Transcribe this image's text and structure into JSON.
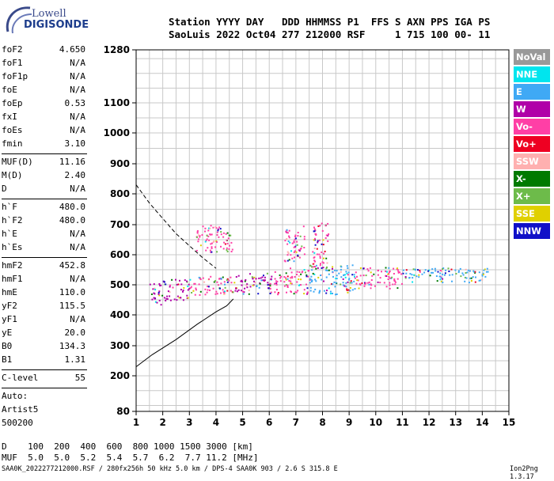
{
  "logo": {
    "line1": "Lowell",
    "line2": "DIGISONDE"
  },
  "header": {
    "line1": "Station YYYY DAY   DDD HHMMSS P1  FFS S AXN PPS IGA PS",
    "line2": "SaoLuis 2022 Oct04 277 212000 RSF     1 715 100 00- 11"
  },
  "params": {
    "group1": [
      {
        "k": "foF2",
        "v": "4.650"
      },
      {
        "k": "foF1",
        "v": "N/A"
      },
      {
        "k": "foF1p",
        "v": "N/A"
      },
      {
        "k": "foE",
        "v": "N/A"
      },
      {
        "k": "foEp",
        "v": "0.53"
      },
      {
        "k": "fxI",
        "v": "N/A"
      },
      {
        "k": "foEs",
        "v": "N/A"
      },
      {
        "k": "fmin",
        "v": "3.10"
      }
    ],
    "group2": [
      {
        "k": "MUF(D)",
        "v": "11.16"
      },
      {
        "k": "M(D)",
        "v": "2.40"
      },
      {
        "k": "D",
        "v": "N/A"
      }
    ],
    "group3": [
      {
        "k": "h`F",
        "v": "480.0"
      },
      {
        "k": "h`F2",
        "v": "480.0"
      },
      {
        "k": "h`E",
        "v": "N/A"
      },
      {
        "k": "h`Es",
        "v": "N/A"
      }
    ],
    "group4": [
      {
        "k": "hmF2",
        "v": "452.8"
      },
      {
        "k": "hmF1",
        "v": "N/A"
      },
      {
        "k": "hmE",
        "v": "110.0"
      },
      {
        "k": "yF2",
        "v": "115.5"
      },
      {
        "k": "yF1",
        "v": "N/A"
      },
      {
        "k": "yE",
        "v": "20.0"
      },
      {
        "k": "B0",
        "v": "134.3"
      },
      {
        "k": "B1",
        "v": "1.31"
      }
    ],
    "clevel": {
      "k": "C-level",
      "v": "55"
    },
    "auto": [
      "Auto:",
      "Artist5",
      "500200"
    ]
  },
  "legend": [
    {
      "label": "NoVal",
      "color": "#999999"
    },
    {
      "label": "NNE",
      "color": "#00e5ee"
    },
    {
      "label": "E",
      "color": "#3fa9f5"
    },
    {
      "label": "W",
      "color": "#b000a8"
    },
    {
      "label": "Vo-",
      "color": "#ff3fa6"
    },
    {
      "label": "Vo+",
      "color": "#ee0022"
    },
    {
      "label": "SSW",
      "color": "#ffb0b0"
    },
    {
      "label": "X-",
      "color": "#007a00"
    },
    {
      "label": "X+",
      "color": "#6dbb4a"
    },
    {
      "label": "SSE",
      "color": "#e0d000"
    },
    {
      "label": "NNW",
      "color": "#1010c8"
    }
  ],
  "footer": {
    "line1": "D    100  200  400  600  800 1000 1500 3000 [km]",
    "line2": "MUF  5.0  5.0  5.2  5.4  5.7  6.2  7.7 11.2 [MHz]",
    "bottom": "SAA0K_2022277212000.RSF / 280fx256h 50 kHz 5.0 km / DPS-4 SAA0K 903 / 2.6 S 315.8 E",
    "version": "Ion2Png 1.3.17"
  },
  "chart_data": {
    "type": "scatter",
    "xlim": [
      1,
      15
    ],
    "xticks": [
      1,
      2,
      3,
      4,
      5,
      6,
      7,
      8,
      9,
      10,
      11,
      12,
      13,
      14,
      15
    ],
    "y_scale": "nonlinear (virtual height)",
    "yticks": [
      80,
      200,
      300,
      400,
      500,
      600,
      700,
      800,
      900,
      1000,
      1100,
      1280
    ],
    "ylim": [
      80,
      1280
    ],
    "grid": true,
    "trace_clusters": [
      {
        "x": [
          1.5,
          2.0
        ],
        "y": [
          430,
          510
        ],
        "color": "#b000a8"
      },
      {
        "x": [
          2.0,
          3.0
        ],
        "y": [
          450,
          520
        ],
        "color": "#b000a8"
      },
      {
        "x": [
          3.0,
          4.6
        ],
        "y": [
          465,
          530
        ],
        "color": "#ff3fa6"
      },
      {
        "x": [
          4.6,
          6.0
        ],
        "y": [
          470,
          540
        ],
        "color": "#b000a8"
      },
      {
        "x": [
          6.0,
          7.5
        ],
        "y": [
          470,
          560
        ],
        "color": "#ff3fa6"
      },
      {
        "x": [
          7.5,
          9.2
        ],
        "y": [
          470,
          570
        ],
        "color": "#3fa9f5"
      },
      {
        "x": [
          9.2,
          11.0
        ],
        "y": [
          490,
          560
        ],
        "color": "#ff3fa6"
      },
      {
        "x": [
          11.0,
          14.2
        ],
        "y": [
          510,
          560
        ],
        "color": "#3fa9f5"
      },
      {
        "x": [
          7.6,
          8.2
        ],
        "y": [
          560,
          710
        ],
        "color": "#ff3fa6"
      },
      {
        "x": [
          6.5,
          7.3
        ],
        "y": [
          580,
          700
        ],
        "color": "#ff3fa6"
      },
      {
        "x": [
          3.2,
          4.6
        ],
        "y": [
          610,
          700
        ],
        "color": "#ff3fa6"
      }
    ],
    "profile_curve": {
      "points": [
        [
          1.0,
          230
        ],
        [
          1.6,
          270
        ],
        [
          2.5,
          320
        ],
        [
          3.3,
          370
        ],
        [
          4.0,
          410
        ],
        [
          4.4,
          430
        ],
        [
          4.65,
          452.8
        ]
      ],
      "style": "solid"
    },
    "muf_curve": {
      "points": [
        [
          1.0,
          830
        ],
        [
          1.5,
          770
        ],
        [
          2.0,
          720
        ],
        [
          2.5,
          670
        ],
        [
          3.0,
          630
        ],
        [
          3.5,
          590
        ],
        [
          4.0,
          555
        ]
      ],
      "style": "dashed"
    }
  }
}
